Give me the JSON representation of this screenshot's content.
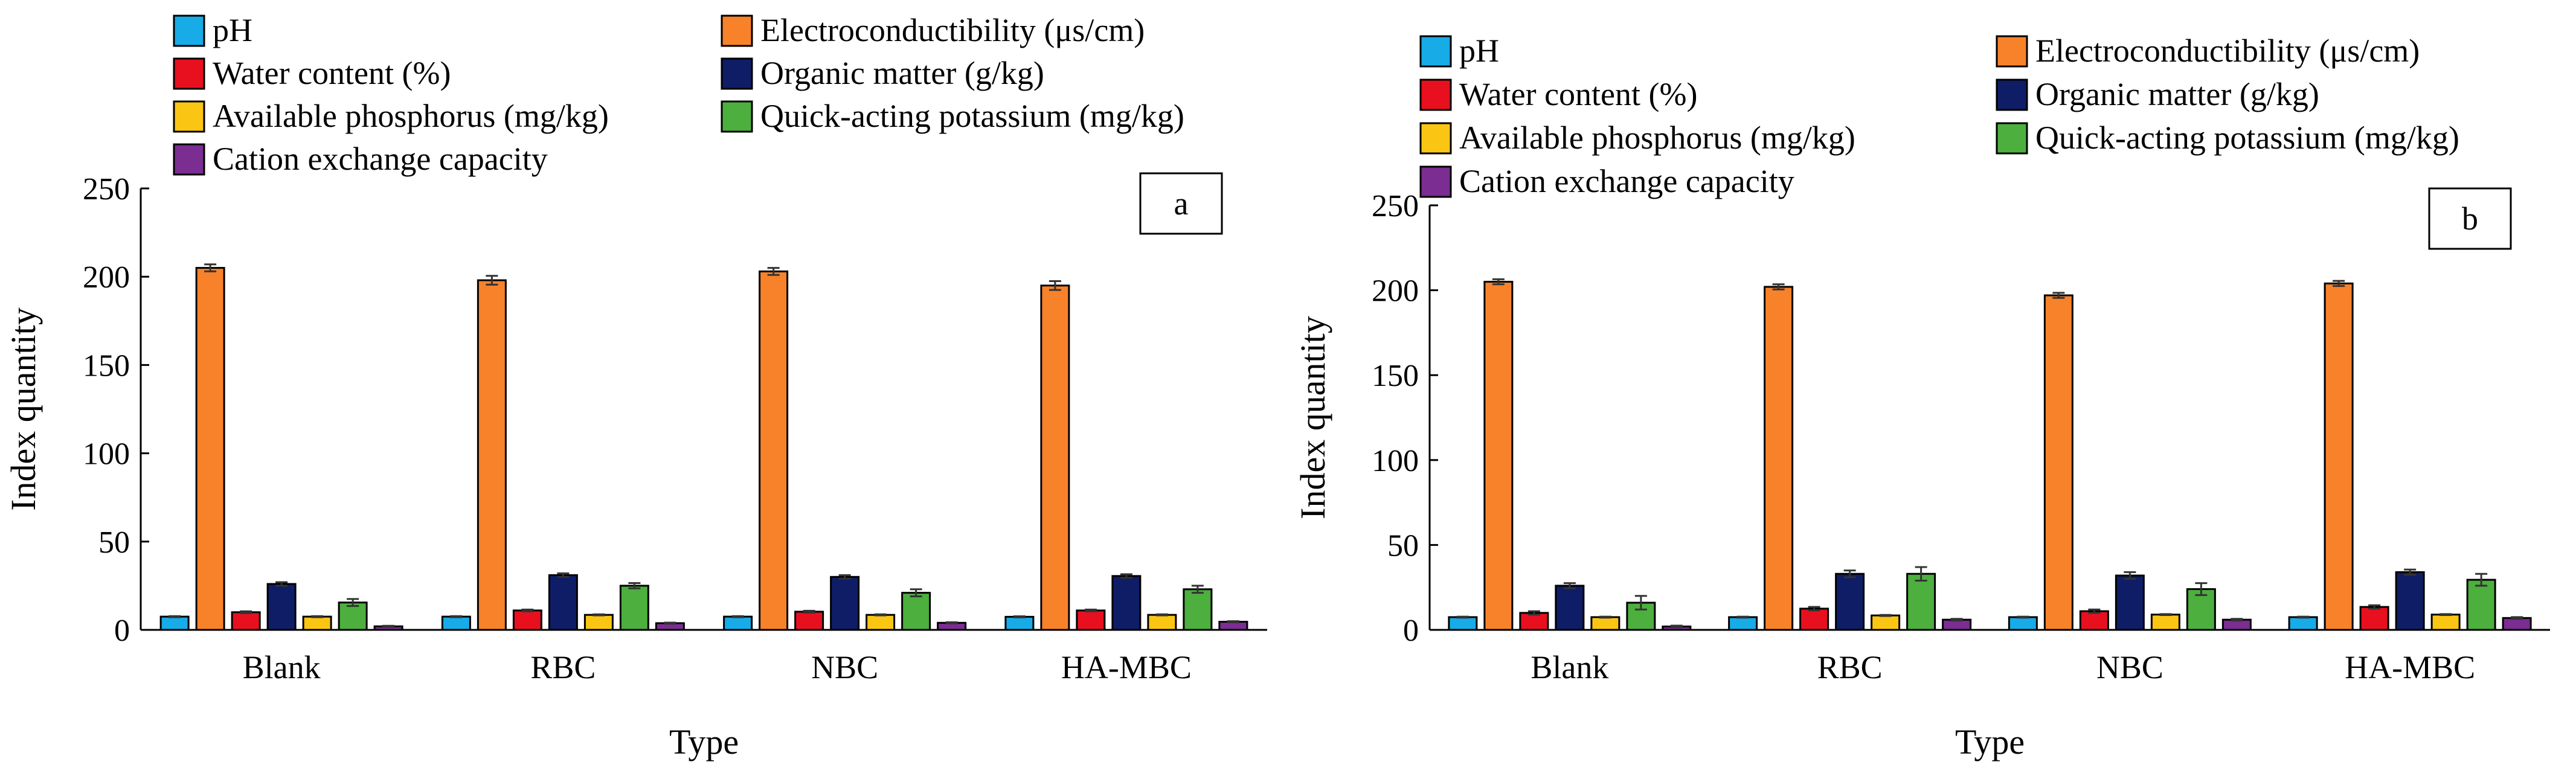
{
  "chart_data": [
    {
      "type": "bar",
      "panel_label": "a",
      "categories": [
        "Blank",
        "RBC",
        "NBC",
        "HA-MBC"
      ],
      "xlabel": "Type",
      "ylabel": "Index quantity",
      "ylim": [
        0,
        250
      ],
      "yticks": [
        "0",
        "50",
        "100",
        "150",
        "200",
        "250"
      ],
      "grid": false,
      "legend": "top",
      "series": [
        {
          "name": "pH",
          "color": "#17ABE8",
          "values": [
            7.5,
            7.5,
            7.5,
            7.4
          ],
          "errors": [
            0.3,
            0.3,
            0.3,
            0.3
          ]
        },
        {
          "name": "Electroconductibility (μs/cm)",
          "color": "#F7822A",
          "values": [
            205,
            198,
            203,
            195
          ],
          "errors": [
            2,
            2.5,
            2,
            2.5
          ]
        },
        {
          "name": "Water content (%)",
          "color": "#E8101E",
          "values": [
            10,
            11,
            10.3,
            11
          ],
          "errors": [
            0.5,
            0.5,
            0.5,
            0.5
          ]
        },
        {
          "name": "Organic matter (g/kg)",
          "color": "#0E1D66",
          "values": [
            26,
            31,
            30,
            30.5
          ],
          "errors": [
            1,
            1,
            1,
            1
          ]
        },
        {
          "name": "Available phosphorus (mg/kg)",
          "color": "#FAC613",
          "values": [
            7.5,
            8.5,
            8.5,
            8.5
          ],
          "errors": [
            0.3,
            0.3,
            0.3,
            0.3
          ]
        },
        {
          "name": "Quick-acting potassium (mg/kg)",
          "color": "#4CAF3E",
          "values": [
            15.5,
            25,
            21,
            23
          ],
          "errors": [
            2,
            1.5,
            2,
            2
          ]
        },
        {
          "name": "Cation exchange capacity",
          "color": "#7B2D91",
          "values": [
            2,
            3.8,
            4,
            4.6
          ],
          "errors": [
            0.3,
            0.3,
            0.3,
            0.3
          ]
        }
      ]
    },
    {
      "type": "bar",
      "panel_label": "b",
      "categories": [
        "Blank",
        "RBC",
        "NBC",
        "HA-MBC"
      ],
      "xlabel": "Type",
      "ylabel": "Index quantity",
      "ylim": [
        0,
        250
      ],
      "yticks": [
        "0",
        "50",
        "100",
        "150",
        "200",
        "250"
      ],
      "grid": false,
      "legend": "top",
      "series": [
        {
          "name": "pH",
          "color": "#17ABE8",
          "values": [
            7.5,
            7.5,
            7.5,
            7.5
          ],
          "errors": [
            0.3,
            0.3,
            0.3,
            0.3
          ]
        },
        {
          "name": "Electroconductibility (μs/cm)",
          "color": "#F7822A",
          "values": [
            205,
            202,
            197,
            204
          ],
          "errors": [
            1.5,
            1.5,
            1.5,
            1.5
          ]
        },
        {
          "name": "Water content (%)",
          "color": "#E8101E",
          "values": [
            10,
            12.5,
            11,
            13.5
          ],
          "errors": [
            1,
            1,
            1,
            1
          ]
        },
        {
          "name": "Organic matter (g/kg)",
          "color": "#0E1D66",
          "values": [
            26,
            33,
            32,
            34
          ],
          "errors": [
            1.5,
            2,
            2,
            1.5
          ]
        },
        {
          "name": "Available phosphorus (mg/kg)",
          "color": "#FAC613",
          "values": [
            7.5,
            8.5,
            9,
            9
          ],
          "errors": [
            0.3,
            0.3,
            0.3,
            0.3
          ]
        },
        {
          "name": "Quick-acting potassium (mg/kg)",
          "color": "#4CAF3E",
          "values": [
            16,
            33,
            24,
            29.5
          ],
          "errors": [
            4,
            4,
            3.5,
            3.5
          ]
        },
        {
          "name": "Cation exchange capacity",
          "color": "#7B2D91",
          "values": [
            2,
            6,
            6,
            7
          ],
          "errors": [
            0.5,
            0.5,
            0.5,
            0.5
          ]
        }
      ]
    }
  ]
}
